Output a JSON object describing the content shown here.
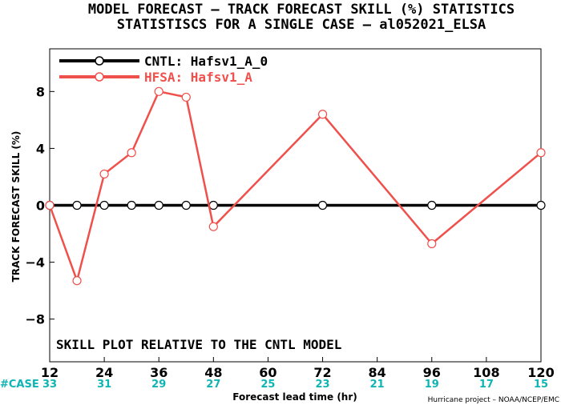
{
  "header": {
    "title_line1": "MODEL FORECAST – TRACK FORECAST SKILL (%) STATISTICS",
    "title_line2": "STATISTISCS FOR A SINGLE CASE – al052021_ELSA"
  },
  "note": "SKILL PLOT RELATIVE TO THE CNTL MODEL",
  "credit": "Hurricane project – NOAA/NCEP/EMC",
  "case_label": "#CASE",
  "colors": {
    "cntl": "#000000",
    "hfsa": "#f0504c",
    "cases": "#10b4b4"
  },
  "chart_data": {
    "type": "line",
    "title": "MODEL FORECAST – TRACK FORECAST SKILL (%) STATISTICS",
    "subtitle": "STATISTISCS FOR A SINGLE CASE – al052021_ELSA",
    "xlabel": "Forecast lead time (hr)",
    "ylabel": "TRACK FORECAST SKILL (%)",
    "xlim": [
      12,
      120
    ],
    "ylim": [
      -11,
      11
    ],
    "xticks": [
      12,
      24,
      36,
      48,
      60,
      72,
      84,
      96,
      108,
      120
    ],
    "xtick_labels": [
      "12",
      "24",
      "36",
      "48",
      "60",
      "72",
      "84",
      "96",
      "108",
      "120"
    ],
    "yticks": [
      -8,
      -4,
      0,
      4,
      8
    ],
    "ytick_labels": [
      "−8",
      "−4",
      "0",
      "4",
      "8"
    ],
    "case_counts": {
      "x": [
        12,
        24,
        36,
        48,
        60,
        72,
        84,
        96,
        108,
        120
      ],
      "values": [
        "33",
        "31",
        "29",
        "27",
        "25",
        "23",
        "21",
        "19",
        "17",
        "15"
      ]
    },
    "legend_position": "top-left",
    "grid": false,
    "series": [
      {
        "name": "CNTL: Hafsv1_A_0",
        "color": "#000000",
        "x": [
          12,
          18,
          24,
          30,
          36,
          42,
          48,
          72,
          96,
          120
        ],
        "y": [
          0,
          0,
          0,
          0,
          0,
          0,
          0,
          0,
          0,
          0
        ]
      },
      {
        "name": "HFSA: Hafsv1_A",
        "color": "#f0504c",
        "x": [
          12,
          18,
          24,
          30,
          36,
          42,
          48,
          72,
          96,
          120
        ],
        "y": [
          0.0,
          -5.3,
          2.2,
          3.7,
          8.0,
          7.6,
          -1.5,
          6.4,
          -2.7,
          3.7
        ]
      }
    ]
  }
}
